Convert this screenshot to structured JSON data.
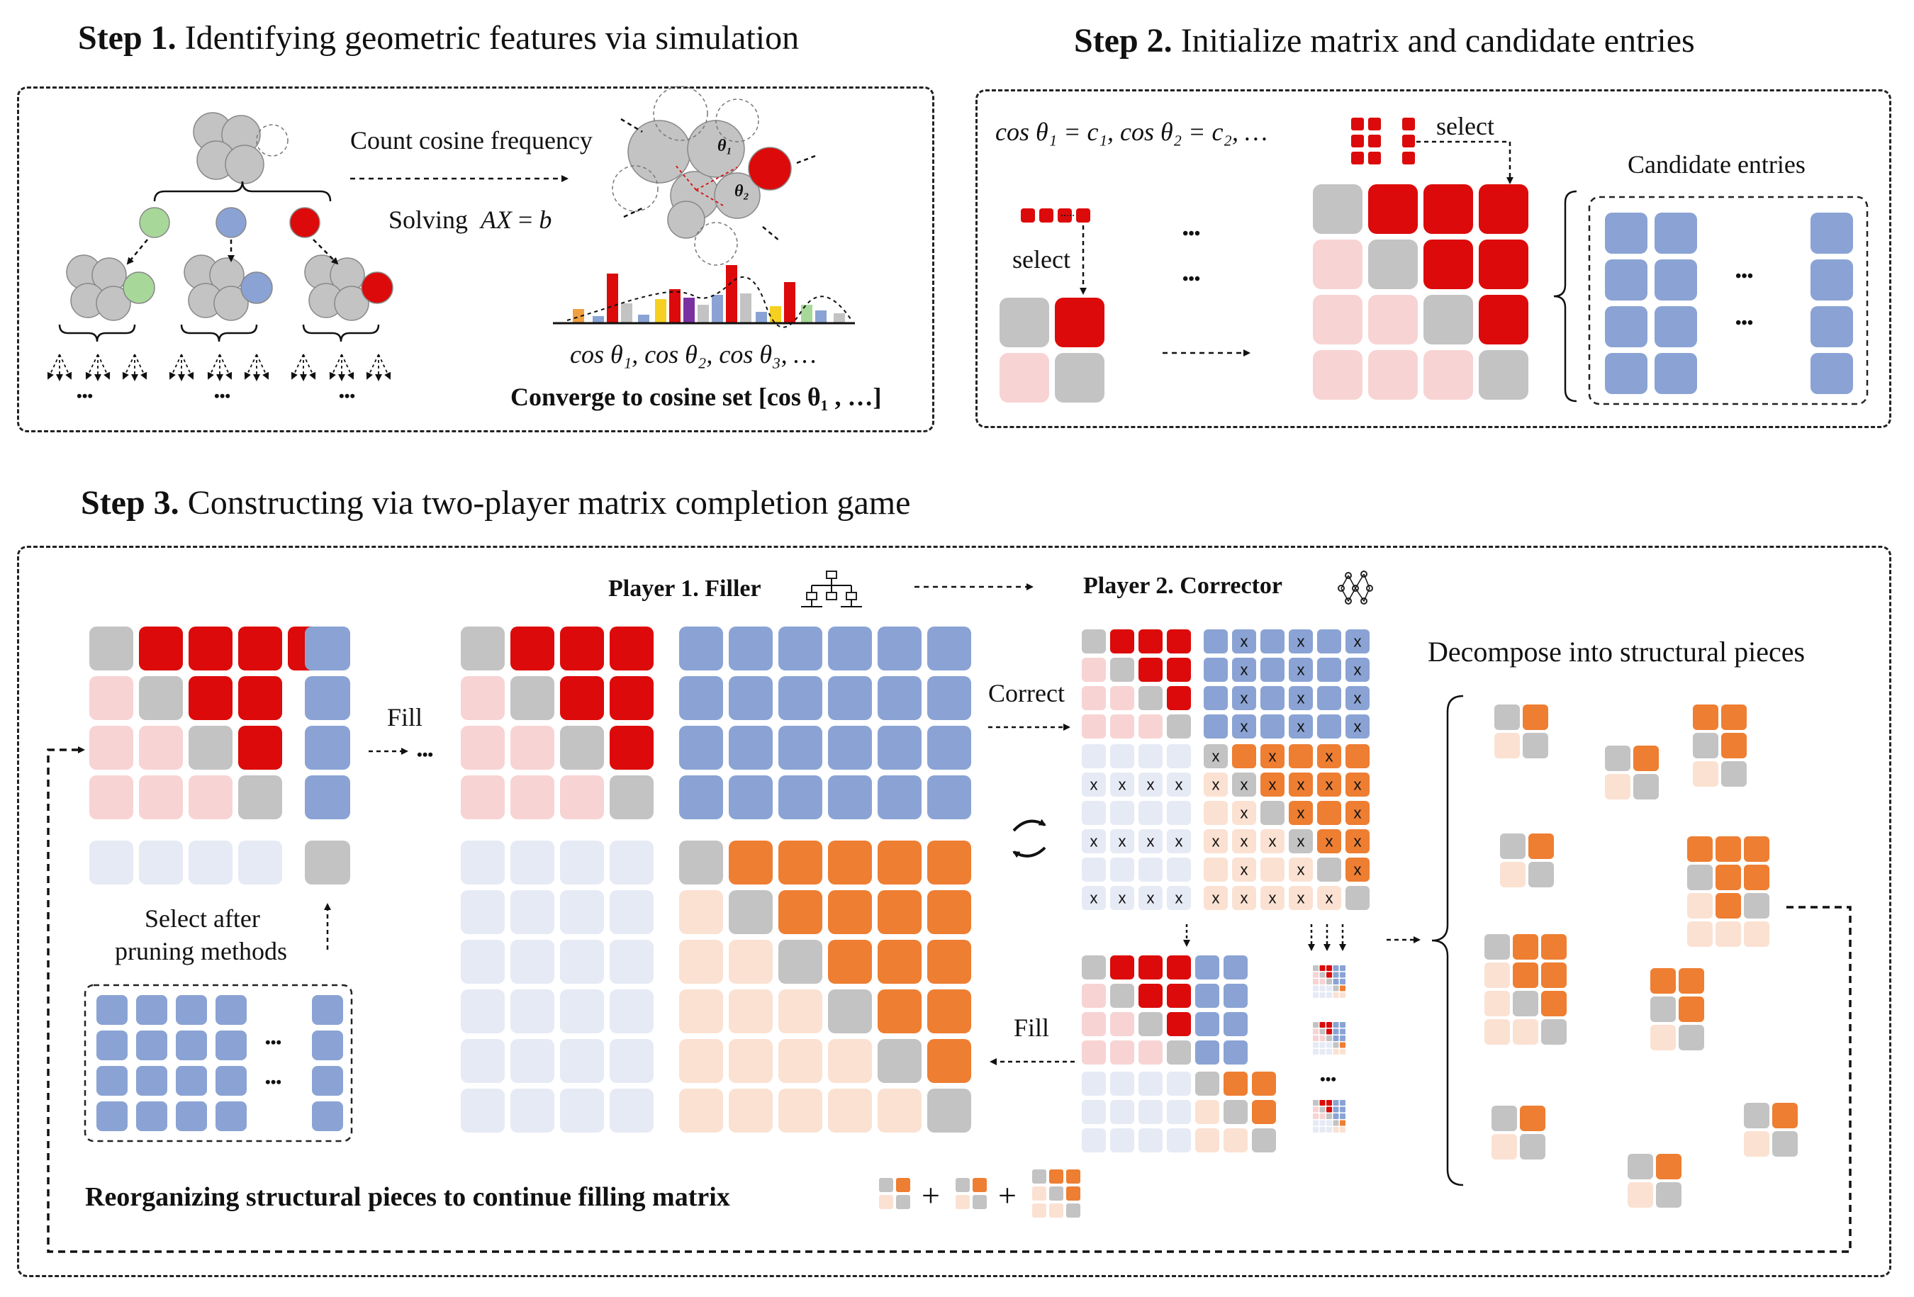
{
  "colors": {
    "red": "#dc0a0a",
    "pink": "#f8d3d3",
    "gray": "#c3c3c3",
    "blue": "#8aa3d4",
    "lightblue": "#e6eaf5",
    "orange": "#ee7e32",
    "peach": "#fbe1d2",
    "green": "#a7d89a"
  },
  "step1": {
    "title_bold": "Step 1.",
    "title_rest": " Identifying geometric features via simulation",
    "count_label": "Count cosine frequency",
    "solving_label": "Solving  AX = b",
    "theta1": "θ₁",
    "theta2": "θ₂",
    "cosines": "cos θ₁, cos θ₂, cos θ₃, …",
    "converge": "Converge to cosine set [cos θ₁ , …]",
    "ellipsis": "•••"
  },
  "step2": {
    "title_bold": "Step 2.",
    "title_rest": " Initialize matrix and candidate entries",
    "cos_eq": "cos θ₁ = c₁, cos θ₂ = c₂, …",
    "select_left": "select",
    "select_top": "select",
    "candidate": "Candidate  entries",
    "ellipsis": "•••"
  },
  "step3": {
    "title_bold": "Step 3.",
    "title_rest": " Constructing  via two-player matrix completion game",
    "player1": "Player 1. Filler",
    "player2": "Player 2. Corrector",
    "fill1": "Fill",
    "correct": "Correct",
    "fill2": "Fill",
    "select_after_1": "Select after",
    "select_after_2": "pruning methods",
    "decompose": "Decompose into structural pieces",
    "reorganize": "Reorganizing structural pieces to continue filling matrix",
    "plus": "+",
    "x_mark": "x",
    "ellipsis": "•••"
  }
}
